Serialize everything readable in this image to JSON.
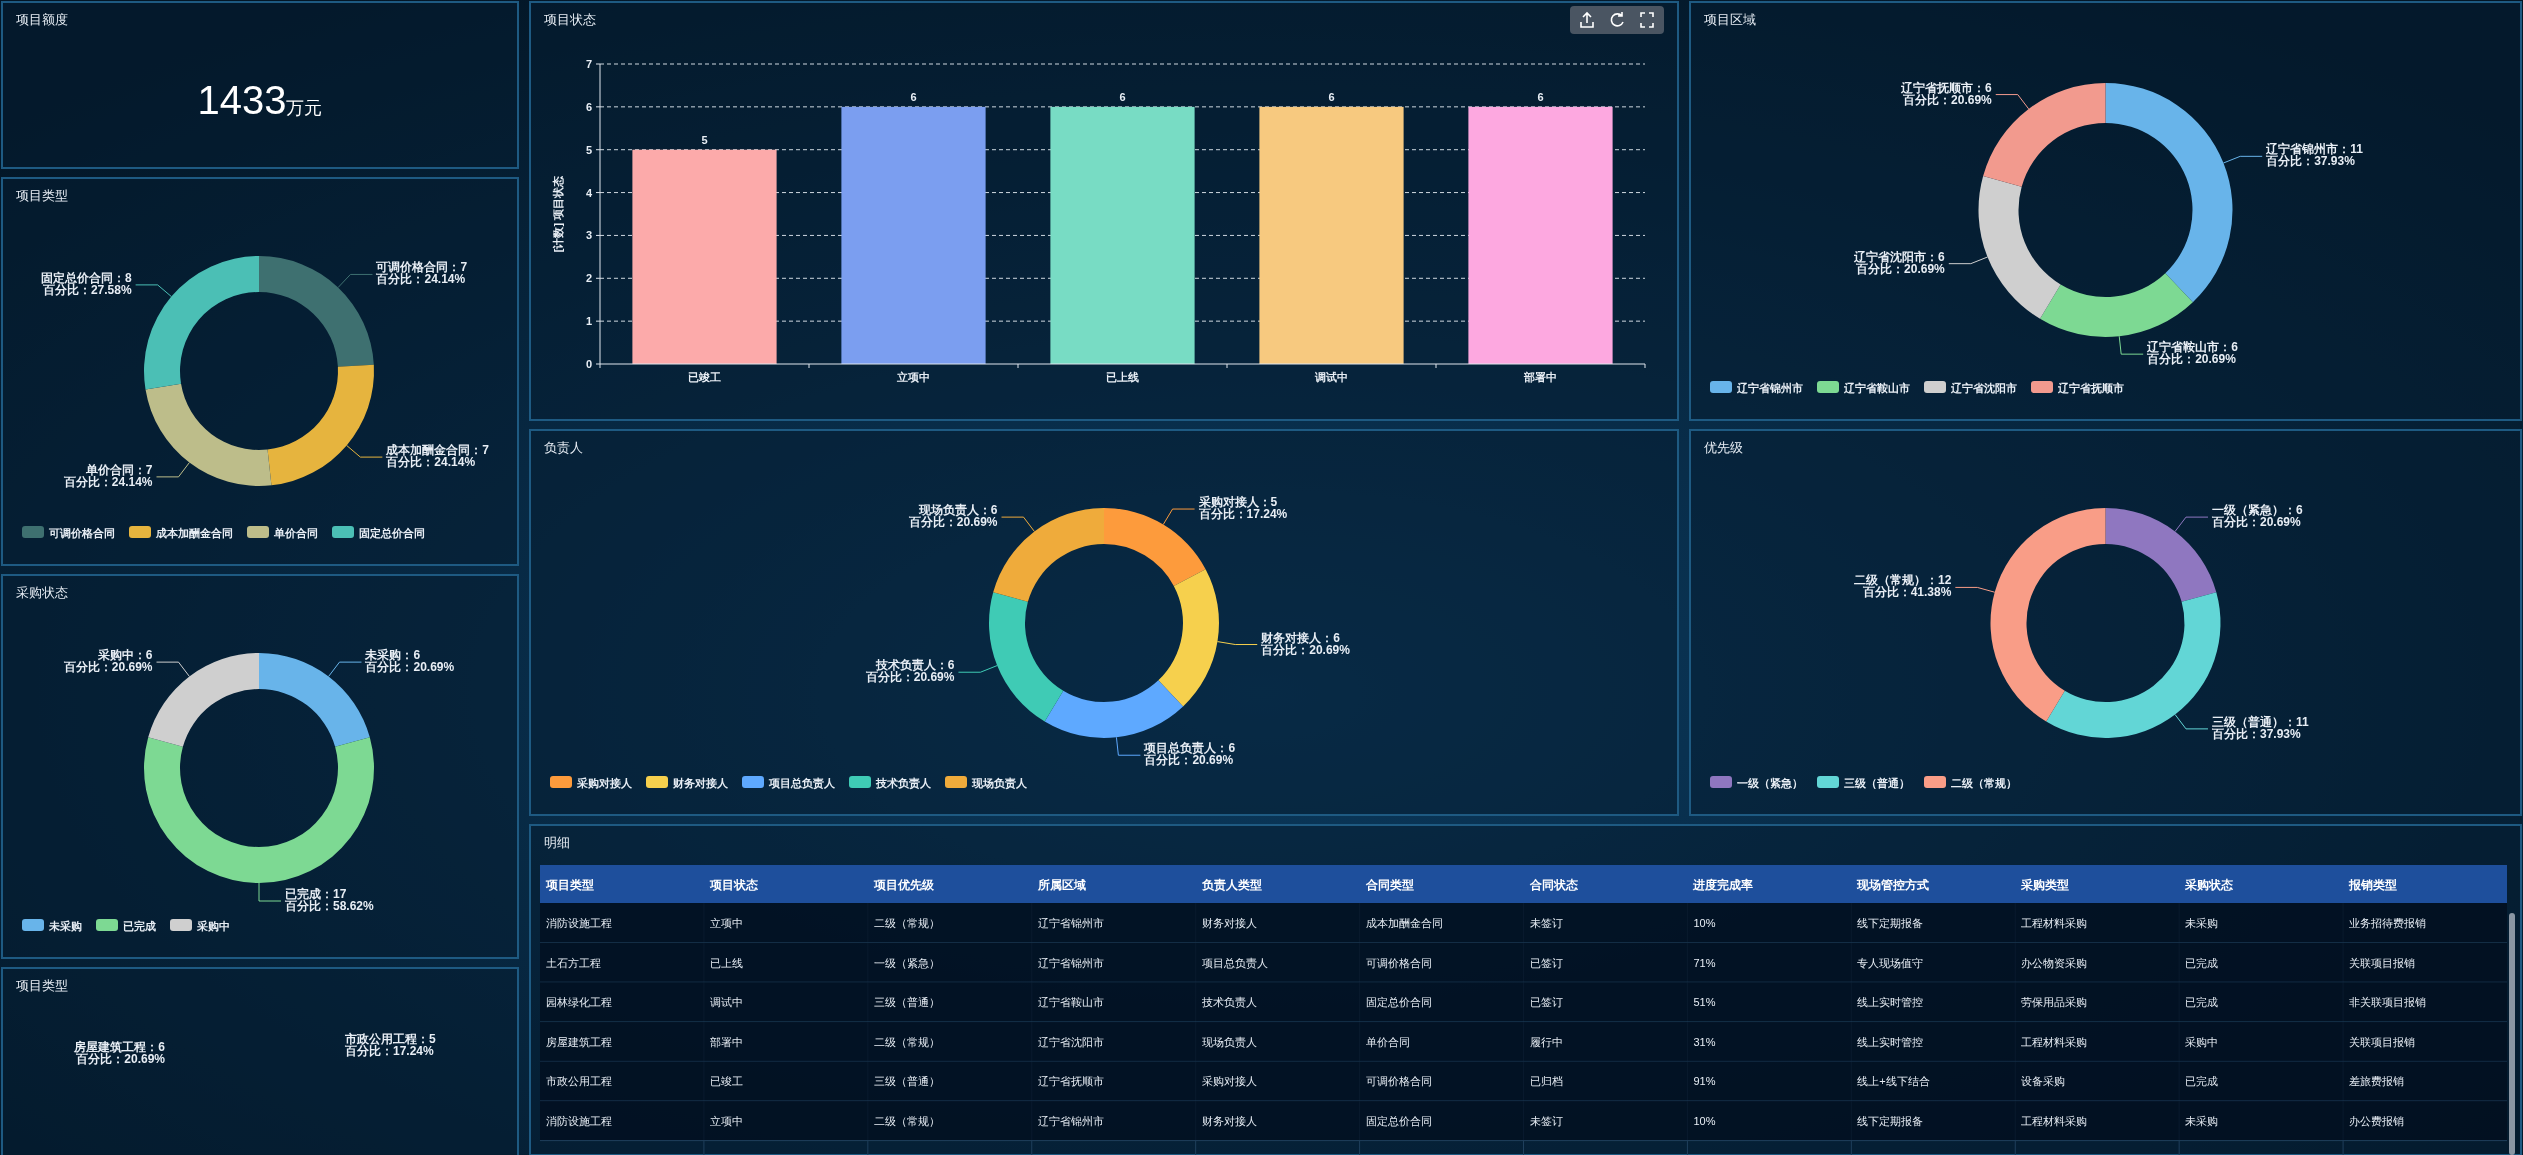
{
  "chart_data": [
    {
      "type": "other",
      "title": "项目额度",
      "annotations": [
        "1433",
        "万元"
      ]
    },
    {
      "type": "bar",
      "title": "项目状态",
      "ylabel": "[计数] 项目状态",
      "categories": [
        "已竣工",
        "立项中",
        "已上线",
        "调试中",
        "部署中"
      ],
      "values": [
        5,
        6,
        6,
        6,
        6
      ],
      "colors": [
        "#fcaaaa",
        "#7b9ef0",
        "#78dcc4",
        "#f7c97f",
        "#fda8e0"
      ],
      "ylim": [
        0,
        7
      ],
      "yticks": [
        0,
        1,
        2,
        3,
        4,
        5,
        6,
        7
      ],
      "grid": "y",
      "data_labels": true
    },
    {
      "type": "donut",
      "title": "项目区域",
      "categories": [
        "辽宁省锦州市",
        "辽宁省鞍山市",
        "辽宁省沈阳市",
        "辽宁省抚顺市"
      ],
      "values": [
        11,
        6,
        6,
        6
      ],
      "colors": [
        "#68b4ea",
        "#7dd993",
        "#cfcfcf",
        "#f29a8e"
      ],
      "value_labels": [
        "辽宁省锦州市：11\n百分比：37.93%",
        "辽宁省鞍山市：6\n百分比：20.69%",
        "辽宁省沈阳市：6\n百分比：20.69%",
        "辽宁省抚顺市：6\n百分比：20.69%"
      ],
      "legend": "bottom left"
    },
    {
      "type": "donut",
      "title": "项目类型",
      "categories": [
        "可调价格合同",
        "成本加酬金合同",
        "单价合同",
        "固定总价合同"
      ],
      "values": [
        7,
        7,
        7,
        8
      ],
      "colors": [
        "#3e7070",
        "#e6b43e",
        "#bdbd8a",
        "#4bbfb5"
      ],
      "value_labels": [
        "可调价格合同：7\n百分比：24.14%",
        "成本加酬金合同：7\n百分比：24.14%",
        "单价合同：7\n百分比：24.14%",
        "固定总价合同：8\n百分比：27.58%"
      ],
      "legend": "bottom left"
    },
    {
      "type": "donut",
      "title": "负责人",
      "categories": [
        "采购对接人",
        "财务对接人",
        "项目总负责人",
        "技术负责人",
        "现场负责人"
      ],
      "values": [
        5,
        6,
        6,
        6,
        6
      ],
      "colors": [
        "#fd9b3c",
        "#f6d04d",
        "#5ea9ff",
        "#3fcbb5",
        "#efab3b"
      ],
      "value_labels": [
        "采购对接人：5\n百分比：17.24%",
        "财务对接人：6\n百分比：20.69%",
        "项目总负责人：6\n百分比：20.69%",
        "技术负责人：6\n百分比：20.69%",
        "现场负责人：6\n百分比：20.69%"
      ],
      "legend": "bottom left"
    },
    {
      "type": "donut",
      "title": "优先级",
      "categories": [
        "一级（紧急）",
        "三级（普通）",
        "二级（常规）"
      ],
      "values": [
        6,
        11,
        12
      ],
      "colors": [
        "#8f77c0",
        "#62d6d6",
        "#f99d87"
      ],
      "value_labels": [
        "一级（紧急）：6\n百分比：20.69%",
        "三级（普通）：11\n百分比：37.93%",
        "二级（常规）：12\n百分比：41.38%"
      ],
      "legend": "bottom left"
    },
    {
      "type": "donut",
      "title": "采购状态",
      "categories": [
        "未采购",
        "已完成",
        "采购中"
      ],
      "values": [
        6,
        17,
        6
      ],
      "colors": [
        "#68b4ea",
        "#7dd993",
        "#cfcfcf"
      ],
      "value_labels": [
        "未采购：6\n百分比：20.69%",
        "已完成：17\n百分比：58.62%",
        "采购中：6\n百分比：20.69%"
      ],
      "legend": "bottom left"
    },
    {
      "type": "other",
      "title": "明细",
      "categories": [
        "项目类型",
        "项目状态",
        "项目优先级",
        "所属区域",
        "负责人类型",
        "合同类型",
        "合同状态",
        "进度完成率",
        "现场管控方式",
        "采购类型",
        "采购状态",
        "报销类型"
      ],
      "cell_labels": [
        [
          "消防设施工程",
          "立项中",
          "二级（常规）",
          "辽宁省锦州市",
          "财务对接人",
          "成本加酬金合同",
          "未签订",
          "10%",
          "线下定期报备",
          "工程材料采购",
          "未采购",
          "业务招待费报销"
        ],
        [
          "土石方工程",
          "已上线",
          "一级（紧急）",
          "辽宁省锦州市",
          "项目总负责人",
          "可调价格合同",
          "已签订",
          "71%",
          "专人现场值守",
          "办公物资采购",
          "已完成",
          "关联项目报销"
        ],
        [
          "园林绿化工程",
          "调试中",
          "三级（普通）",
          "辽宁省鞍山市",
          "技术负责人",
          "固定总价合同",
          "已签订",
          "51%",
          "线上实时管控",
          "劳保用品采购",
          "已完成",
          "非关联项目报销"
        ],
        [
          "房屋建筑工程",
          "部署中",
          "二级（常规）",
          "辽宁省沈阳市",
          "现场负责人",
          "单价合同",
          "履行中",
          "31%",
          "线上实时管控",
          "工程材料采购",
          "采购中",
          "关联项目报销"
        ],
        [
          "市政公用工程",
          "已竣工",
          "三级（普通）",
          "辽宁省抚顺市",
          "采购对接人",
          "可调价格合同",
          "已归档",
          "91%",
          "线上+线下结合",
          "设备采购",
          "已完成",
          "差旅费报销"
        ],
        [
          "消防设施工程",
          "立项中",
          "二级（常规）",
          "辽宁省锦州市",
          "财务对接人",
          "固定总价合同",
          "未签订",
          "10%",
          "线下定期报备",
          "工程材料采购",
          "未采购",
          "办公费报销"
        ]
      ]
    },
    {
      "type": "other",
      "title": "项目类型",
      "annotations": [
        "市政公用工程：5\n百分比：17.24%",
        "房屋建筑工程：6\n百分比：20.69%"
      ]
    }
  ]
}
